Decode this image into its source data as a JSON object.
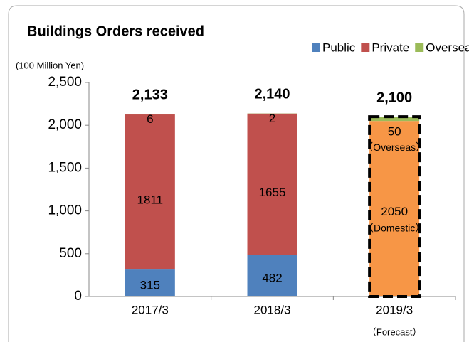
{
  "chart_data": {
    "type": "bar",
    "stacked": true,
    "title": "Buildings Orders received",
    "y_label": "(100 Million Yen)",
    "categories": [
      "2017/3",
      "2018/3",
      "2019/3"
    ],
    "series": [
      {
        "name": "Public",
        "color": "#4f81bd",
        "values": [
          315,
          482,
          null
        ]
      },
      {
        "name": "Private",
        "color": "#c0504d",
        "values": [
          1811,
          1655,
          null
        ]
      },
      {
        "name": "Overseas",
        "color": "#9bbb59",
        "values": [
          6,
          2,
          50
        ]
      }
    ],
    "forecast": {
      "name": "（Domestic）",
      "color": "#f79646",
      "values": [
        null,
        null,
        2050
      ],
      "overseas_note": "（Overseas）",
      "label": "（Forecast）"
    },
    "totals": {
      "values": [
        2133,
        2140,
        2100
      ],
      "value_labels": [
        "2,133",
        "2,140",
        "2,100"
      ]
    },
    "ylim": [
      0,
      2500
    ],
    "yticks": [
      0,
      500,
      {
        "value": 1000,
        "label": "1,000"
      },
      {
        "value": 1500,
        "label": "1,500"
      },
      {
        "value": 2000,
        "label": "2,000"
      },
      {
        "value": 2500,
        "label": "2,500"
      }
    ],
    "legend": "top-right"
  }
}
